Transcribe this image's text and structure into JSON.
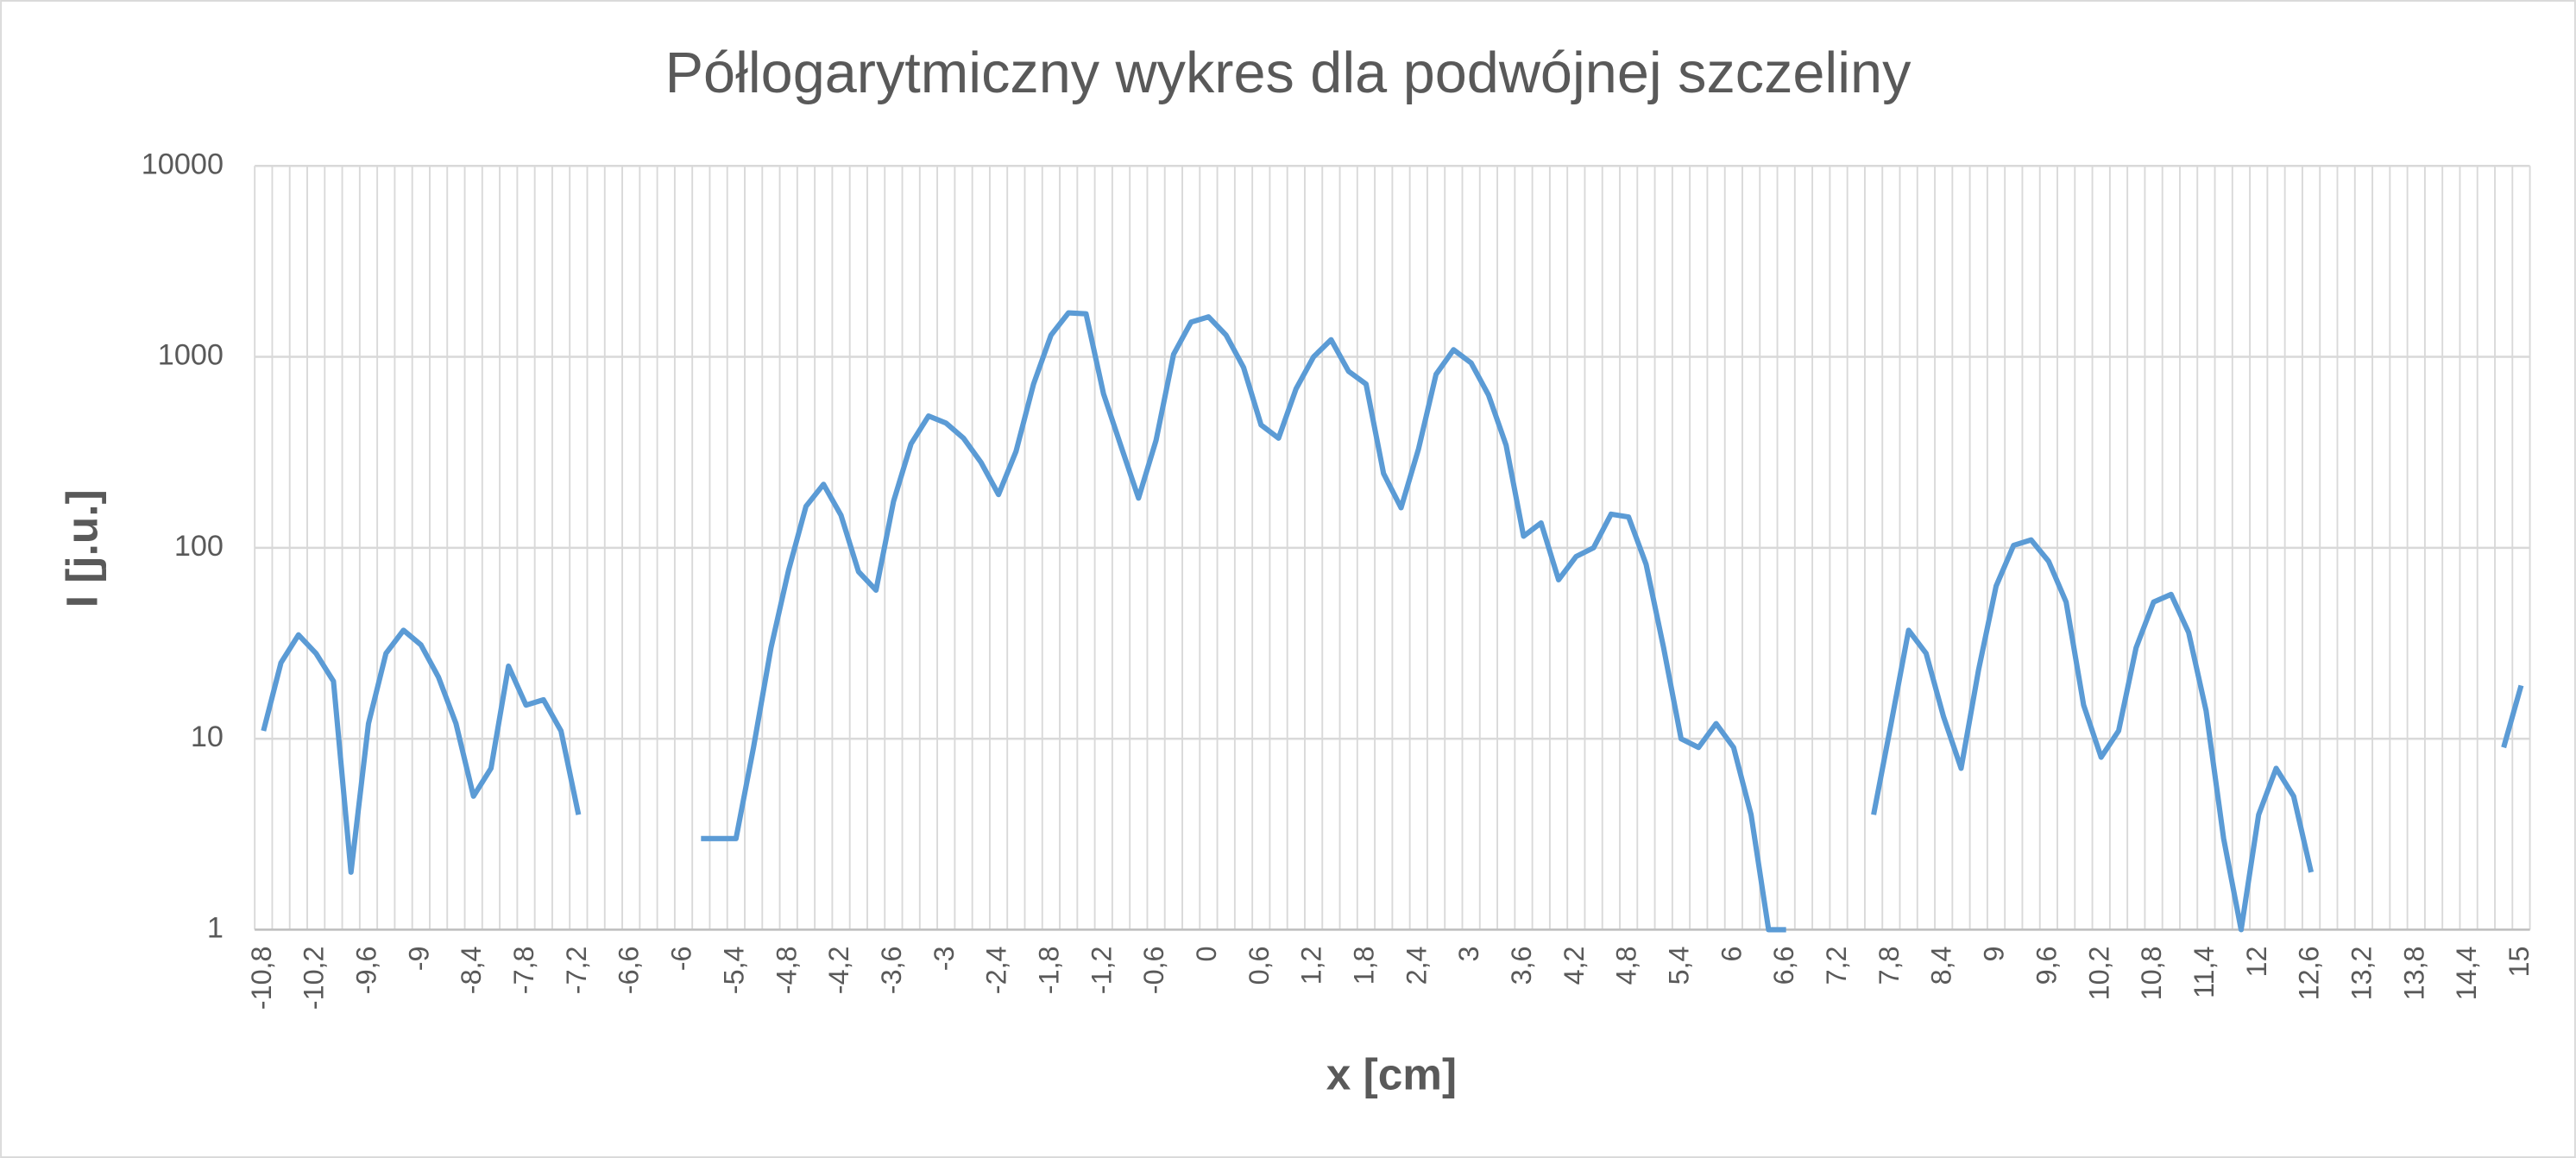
{
  "chart_data": {
    "type": "line",
    "title": "Półlogarytmiczny wykres dla podwójnej szczeliny",
    "x_label": "x [cm]",
    "y_label": "I [j.u.]",
    "categories": [
      "-10,8",
      null,
      null,
      "-10,2",
      null,
      null,
      "-9,6",
      null,
      null,
      "-9",
      null,
      null,
      "-8,4",
      null,
      null,
      "-7,8",
      null,
      null,
      "-7,2",
      null,
      null,
      "-6,6",
      null,
      null,
      "-6",
      null,
      null,
      "-5,4",
      null,
      null,
      "-4,8",
      null,
      null,
      "-4,2",
      null,
      null,
      "-3,6",
      null,
      null,
      "-3",
      null,
      null,
      "-2,4",
      null,
      null,
      "-1,8",
      null,
      null,
      "-1,2",
      null,
      null,
      "-0,6",
      null,
      null,
      "0",
      null,
      null,
      "0,6",
      null,
      null,
      "1,2",
      null,
      null,
      "1,8",
      null,
      null,
      "2,4",
      null,
      null,
      "3",
      null,
      null,
      "3,6",
      null,
      null,
      "4,2",
      null,
      null,
      "4,8",
      null,
      null,
      "5,4",
      null,
      null,
      "6",
      null,
      null,
      "6,6",
      null,
      null,
      "7,2",
      null,
      null,
      "7,8",
      null,
      null,
      "8,4",
      null,
      null,
      "9",
      null,
      null,
      "9,6",
      null,
      null,
      "10,2",
      null,
      null,
      "10,8",
      null,
      null,
      "11,4",
      null,
      null,
      "12",
      null,
      null,
      "12,6",
      null,
      null,
      "13,2",
      null,
      null,
      "13,8",
      null,
      null,
      "14,4",
      null,
      null,
      "15"
    ],
    "series": [
      {
        "name": "I",
        "color": "#5b9bd5",
        "values": [
          11,
          25,
          35,
          28,
          20,
          2,
          12,
          28,
          37,
          31,
          21,
          12,
          5,
          7,
          24,
          15,
          16,
          11,
          4,
          null,
          null,
          null,
          null,
          null,
          null,
          3,
          3,
          3,
          9,
          30,
          76,
          165,
          215,
          148,
          75,
          60,
          175,
          350,
          490,
          450,
          375,
          280,
          190,
          320,
          720,
          1300,
          1700,
          1680,
          640,
          340,
          182,
          365,
          1030,
          1520,
          1620,
          1300,
          880,
          440,
          375,
          680,
          1000,
          1230,
          840,
          720,
          245,
          162,
          330,
          810,
          1090,
          930,
          630,
          345,
          115,
          135,
          68,
          90,
          100,
          150,
          145,
          82,
          30,
          10,
          9,
          12,
          9,
          4,
          1,
          1,
          null,
          null,
          null,
          null,
          4,
          12,
          37,
          28,
          13,
          7,
          23,
          63,
          103,
          110,
          85,
          52,
          15,
          8,
          11,
          30,
          52,
          57,
          36,
          14,
          3,
          1,
          4,
          7,
          5,
          2,
          null,
          null,
          null,
          null,
          null,
          null,
          null,
          null,
          null,
          null,
          9,
          19
        ]
      }
    ],
    "ylim": [
      1,
      10000
    ],
    "yticks": [
      1,
      10,
      100,
      1000,
      10000
    ],
    "log_scale": true,
    "grid": true
  }
}
